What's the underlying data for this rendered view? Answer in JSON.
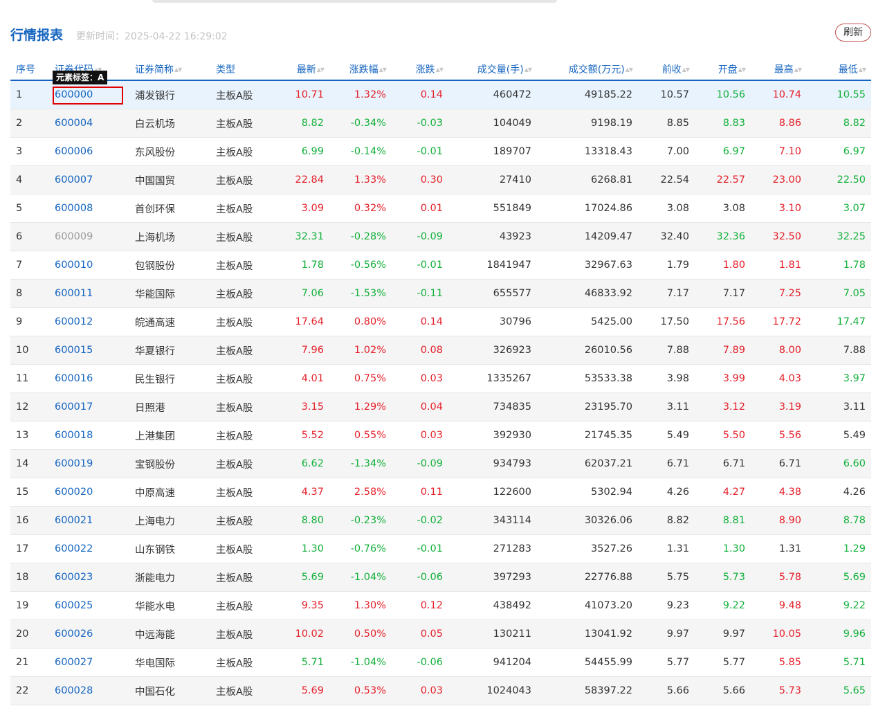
{
  "page": {
    "title": "行情报表",
    "update_label": "更新时间：",
    "update_time": "2025-04-22 16:29:02",
    "refresh_label": "刷新",
    "element_tag": "元素标签：A"
  },
  "colors": {
    "up": "#e5202a",
    "down": "#12b03a",
    "accent": "#1565c0",
    "highlight": "#e00000"
  },
  "columns": [
    {
      "key": "idx",
      "label": "序号",
      "sortable": false,
      "align": "l"
    },
    {
      "key": "code",
      "label": "证券代码",
      "sortable": true,
      "align": "l"
    },
    {
      "key": "name",
      "label": "证券简称",
      "sortable": true,
      "align": "l"
    },
    {
      "key": "type",
      "label": "类型",
      "sortable": false,
      "align": "l"
    },
    {
      "key": "last",
      "label": "最新",
      "sortable": true,
      "align": "r"
    },
    {
      "key": "pct",
      "label": "涨跌幅",
      "sortable": true,
      "align": "r"
    },
    {
      "key": "chg",
      "label": "涨跌",
      "sortable": true,
      "align": "r"
    },
    {
      "key": "vol",
      "label": "成交量(手)",
      "sortable": true,
      "align": "r"
    },
    {
      "key": "amt",
      "label": "成交额(万元)",
      "sortable": true,
      "align": "r"
    },
    {
      "key": "prev",
      "label": "前收",
      "sortable": true,
      "align": "r"
    },
    {
      "key": "open",
      "label": "开盘",
      "sortable": true,
      "align": "r"
    },
    {
      "key": "high",
      "label": "最高",
      "sortable": true,
      "align": "r"
    },
    {
      "key": "low",
      "label": "最低",
      "sortable": true,
      "align": "r"
    }
  ],
  "rows": [
    {
      "idx": "1",
      "code": "600000",
      "name": "浦发银行",
      "type": "主板A股",
      "last": "10.71",
      "pct": "1.32%",
      "chg": "0.14",
      "vol": "460472",
      "amt": "49185.22",
      "prev": "10.57",
      "open": "10.56",
      "high": "10.74",
      "low": "10.55"
    },
    {
      "idx": "2",
      "code": "600004",
      "name": "白云机场",
      "type": "主板A股",
      "last": "8.82",
      "pct": "-0.34%",
      "chg": "-0.03",
      "vol": "104049",
      "amt": "9198.19",
      "prev": "8.85",
      "open": "8.83",
      "high": "8.86",
      "low": "8.82"
    },
    {
      "idx": "3",
      "code": "600006",
      "name": "东风股份",
      "type": "主板A股",
      "last": "6.99",
      "pct": "-0.14%",
      "chg": "-0.01",
      "vol": "189707",
      "amt": "13318.43",
      "prev": "7.00",
      "open": "6.97",
      "high": "7.10",
      "low": "6.97"
    },
    {
      "idx": "4",
      "code": "600007",
      "name": "中国国贸",
      "type": "主板A股",
      "last": "22.84",
      "pct": "1.33%",
      "chg": "0.30",
      "vol": "27410",
      "amt": "6268.81",
      "prev": "22.54",
      "open": "22.57",
      "high": "23.00",
      "low": "22.50"
    },
    {
      "idx": "5",
      "code": "600008",
      "name": "首创环保",
      "type": "主板A股",
      "last": "3.09",
      "pct": "0.32%",
      "chg": "0.01",
      "vol": "551849",
      "amt": "17024.86",
      "prev": "3.08",
      "open": "3.08",
      "high": "3.10",
      "low": "3.07"
    },
    {
      "idx": "6",
      "code": "600009",
      "name": "上海机场",
      "type": "主板A股",
      "last": "32.31",
      "pct": "-0.28%",
      "chg": "-0.09",
      "vol": "43923",
      "amt": "14209.47",
      "prev": "32.40",
      "open": "32.36",
      "high": "32.50",
      "low": "32.25"
    },
    {
      "idx": "7",
      "code": "600010",
      "name": "包钢股份",
      "type": "主板A股",
      "last": "1.78",
      "pct": "-0.56%",
      "chg": "-0.01",
      "vol": "1841947",
      "amt": "32967.63",
      "prev": "1.79",
      "open": "1.80",
      "high": "1.81",
      "low": "1.78"
    },
    {
      "idx": "8",
      "code": "600011",
      "name": "华能国际",
      "type": "主板A股",
      "last": "7.06",
      "pct": "-1.53%",
      "chg": "-0.11",
      "vol": "655577",
      "amt": "46833.92",
      "prev": "7.17",
      "open": "7.17",
      "high": "7.25",
      "low": "7.05"
    },
    {
      "idx": "9",
      "code": "600012",
      "name": "皖通高速",
      "type": "主板A股",
      "last": "17.64",
      "pct": "0.80%",
      "chg": "0.14",
      "vol": "30796",
      "amt": "5425.00",
      "prev": "17.50",
      "open": "17.56",
      "high": "17.72",
      "low": "17.47"
    },
    {
      "idx": "10",
      "code": "600015",
      "name": "华夏银行",
      "type": "主板A股",
      "last": "7.96",
      "pct": "1.02%",
      "chg": "0.08",
      "vol": "326923",
      "amt": "26010.56",
      "prev": "7.88",
      "open": "7.89",
      "high": "8.00",
      "low": "7.88"
    },
    {
      "idx": "11",
      "code": "600016",
      "name": "民生银行",
      "type": "主板A股",
      "last": "4.01",
      "pct": "0.75%",
      "chg": "0.03",
      "vol": "1335267",
      "amt": "53533.38",
      "prev": "3.98",
      "open": "3.99",
      "high": "4.03",
      "low": "3.97"
    },
    {
      "idx": "12",
      "code": "600017",
      "name": "日照港",
      "type": "主板A股",
      "last": "3.15",
      "pct": "1.29%",
      "chg": "0.04",
      "vol": "734835",
      "amt": "23195.70",
      "prev": "3.11",
      "open": "3.12",
      "high": "3.19",
      "low": "3.11"
    },
    {
      "idx": "13",
      "code": "600018",
      "name": "上港集团",
      "type": "主板A股",
      "last": "5.52",
      "pct": "0.55%",
      "chg": "0.03",
      "vol": "392930",
      "amt": "21745.35",
      "prev": "5.49",
      "open": "5.50",
      "high": "5.56",
      "low": "5.49"
    },
    {
      "idx": "14",
      "code": "600019",
      "name": "宝钢股份",
      "type": "主板A股",
      "last": "6.62",
      "pct": "-1.34%",
      "chg": "-0.09",
      "vol": "934793",
      "amt": "62037.21",
      "prev": "6.71",
      "open": "6.71",
      "high": "6.71",
      "low": "6.60"
    },
    {
      "idx": "15",
      "code": "600020",
      "name": "中原高速",
      "type": "主板A股",
      "last": "4.37",
      "pct": "2.58%",
      "chg": "0.11",
      "vol": "122600",
      "amt": "5302.94",
      "prev": "4.26",
      "open": "4.27",
      "high": "4.38",
      "low": "4.26"
    },
    {
      "idx": "16",
      "code": "600021",
      "name": "上海电力",
      "type": "主板A股",
      "last": "8.80",
      "pct": "-0.23%",
      "chg": "-0.02",
      "vol": "343114",
      "amt": "30326.06",
      "prev": "8.82",
      "open": "8.81",
      "high": "8.90",
      "low": "8.78"
    },
    {
      "idx": "17",
      "code": "600022",
      "name": "山东钢铁",
      "type": "主板A股",
      "last": "1.30",
      "pct": "-0.76%",
      "chg": "-0.01",
      "vol": "271283",
      "amt": "3527.26",
      "prev": "1.31",
      "open": "1.30",
      "high": "1.31",
      "low": "1.29"
    },
    {
      "idx": "18",
      "code": "600023",
      "name": "浙能电力",
      "type": "主板A股",
      "last": "5.69",
      "pct": "-1.04%",
      "chg": "-0.06",
      "vol": "397293",
      "amt": "22776.88",
      "prev": "5.75",
      "open": "5.73",
      "high": "5.78",
      "low": "5.69"
    },
    {
      "idx": "19",
      "code": "600025",
      "name": "华能水电",
      "type": "主板A股",
      "last": "9.35",
      "pct": "1.30%",
      "chg": "0.12",
      "vol": "438492",
      "amt": "41073.20",
      "prev": "9.23",
      "open": "9.22",
      "high": "9.48",
      "low": "9.22"
    },
    {
      "idx": "20",
      "code": "600026",
      "name": "中远海能",
      "type": "主板A股",
      "last": "10.02",
      "pct": "0.50%",
      "chg": "0.05",
      "vol": "130211",
      "amt": "13041.92",
      "prev": "9.97",
      "open": "9.97",
      "high": "10.05",
      "low": "9.96"
    },
    {
      "idx": "21",
      "code": "600027",
      "name": "华电国际",
      "type": "主板A股",
      "last": "5.71",
      "pct": "-1.04%",
      "chg": "-0.06",
      "vol": "941204",
      "amt": "54455.99",
      "prev": "5.77",
      "open": "5.77",
      "high": "5.85",
      "low": "5.71"
    },
    {
      "idx": "22",
      "code": "600028",
      "name": "中国石化",
      "type": "主板A股",
      "last": "5.69",
      "pct": "0.53%",
      "chg": "0.03",
      "vol": "1024043",
      "amt": "58397.22",
      "prev": "5.66",
      "open": "5.66",
      "high": "5.73",
      "low": "5.65"
    }
  ]
}
